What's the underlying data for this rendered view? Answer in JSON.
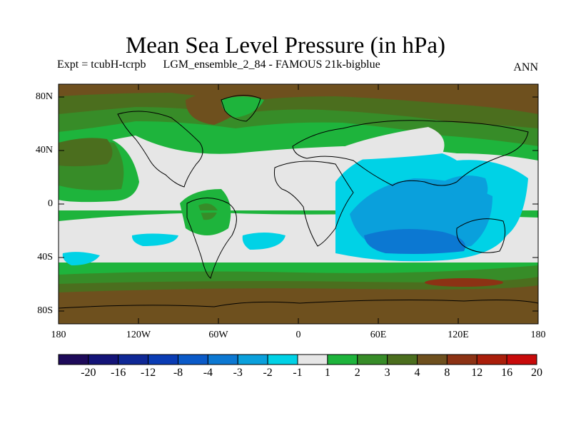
{
  "title": "Mean Sea Level Pressure (in hPa)",
  "subtitle_left": "Expt = tcubH-tcrpb      LGM_ensemble_2_84 - FAMOUS 21k-bigblue",
  "subtitle_right": "ANN",
  "lat_labels": [
    "80N",
    "40N",
    "0",
    "40S",
    "80S"
  ],
  "lon_labels": [
    "180",
    "120W",
    "60W",
    "0",
    "60E",
    "120E",
    "180"
  ],
  "colorbar": {
    "boundaries": [
      "-20",
      "-16",
      "-12",
      "-8",
      "-4",
      "-3",
      "-2",
      "-1",
      "1",
      "2",
      "3",
      "4",
      "8",
      "12",
      "16",
      "20"
    ],
    "colors": [
      "#1e0a5a",
      "#141478",
      "#0f2896",
      "#0a3cb4",
      "#0a5ac8",
      "#0c78d2",
      "#0aa0dc",
      "#00d2e6",
      "#e6e6e6",
      "#1eb43c",
      "#378c28",
      "#4b6e1e",
      "#6e501e",
      "#8c3214",
      "#aa1e0a",
      "#c80a0a"
    ]
  },
  "palette": {
    "land_outline": "#000000",
    "neutral": "#e6e6e6",
    "green_light": "#1eb43c",
    "green_mid": "#378c28",
    "olive": "#4b6e1e",
    "brown": "#6e501e",
    "rust": "#8c3214",
    "cyan": "#00d2e6",
    "sky": "#0aa0dc",
    "blue": "#0c78d2"
  }
}
